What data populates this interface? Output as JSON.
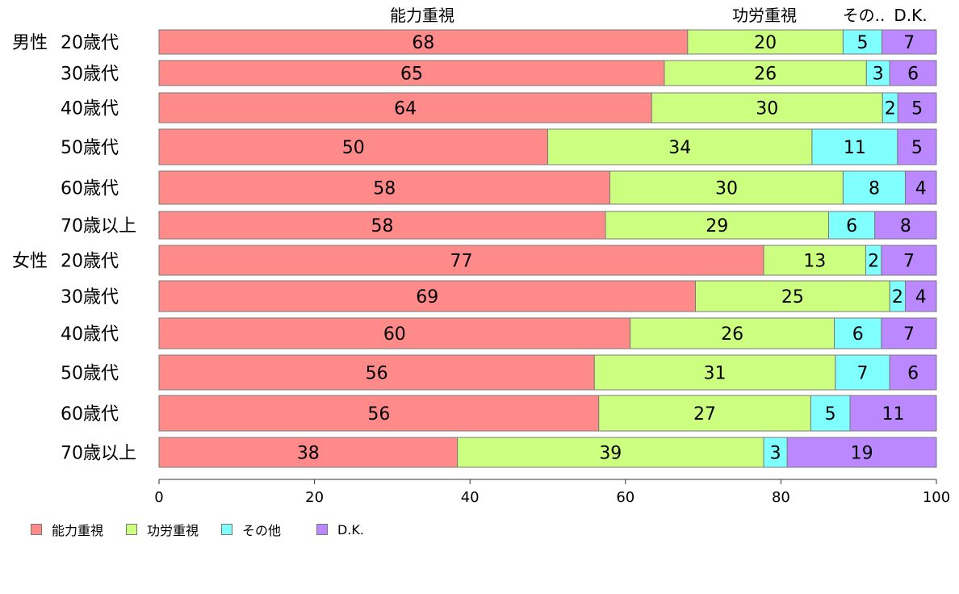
{
  "chart_data": {
    "type": "bar",
    "orientation": "horizontal",
    "stacked": true,
    "groups": [
      {
        "label": "男性",
        "first_row": 0
      },
      {
        "label": "女性",
        "first_row": 6
      }
    ],
    "categories": [
      "20歳代",
      "30歳代",
      "40歳代",
      "50歳代",
      "60歳代",
      "70歳以上",
      "20歳代",
      "30歳代",
      "40歳代",
      "50歳代",
      "60歳代",
      "70歳以上"
    ],
    "series": [
      {
        "name": "能力重視",
        "color": "#ff8a8a",
        "values": [
          68,
          65,
          64,
          50,
          58,
          58,
          77,
          69,
          60,
          56,
          56,
          38
        ]
      },
      {
        "name": "功労重視",
        "color": "#ccff80",
        "values": [
          20,
          26,
          30,
          34,
          30,
          29,
          13,
          25,
          26,
          31,
          27,
          39
        ]
      },
      {
        "name": "その他",
        "color": "#80ffff",
        "values": [
          5,
          3,
          2,
          11,
          8,
          6,
          2,
          2,
          6,
          7,
          5,
          3
        ]
      },
      {
        "name": "D.K.",
        "color": "#bb88ff",
        "values": [
          7,
          6,
          5,
          5,
          4,
          8,
          7,
          4,
          7,
          6,
          11,
          19
        ]
      }
    ],
    "top_labels": [
      "能力重視",
      "功労重視",
      "その..",
      "D.K."
    ],
    "xlim": [
      0,
      100
    ],
    "xticks": [
      "0",
      "20",
      "40",
      "60",
      "80",
      "100"
    ],
    "grid": false,
    "legend_position": "bottom-left"
  }
}
